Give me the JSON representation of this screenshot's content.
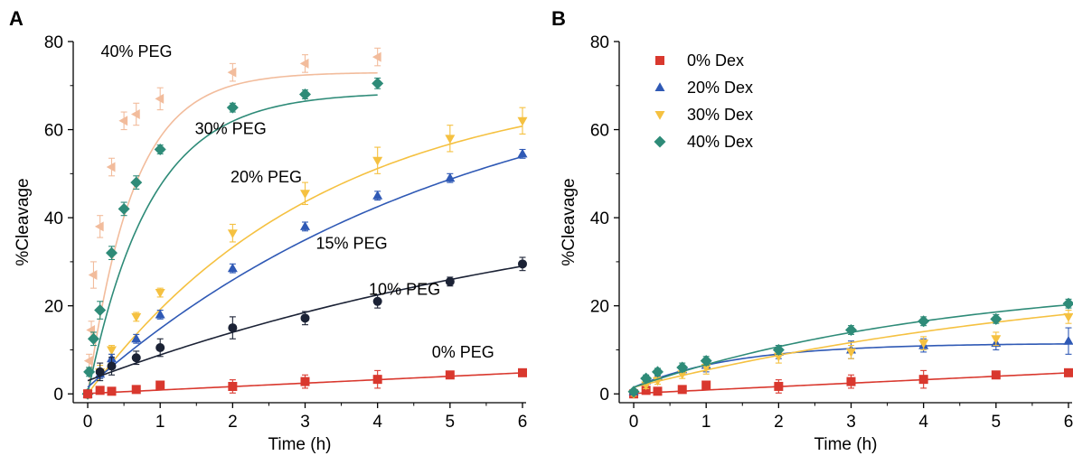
{
  "chart_data": [
    {
      "panel": "A",
      "type": "scatter",
      "xlabel": "Time (h)",
      "ylabel": "%Cleavage",
      "xlim": [
        -0.2,
        6.05
      ],
      "ylim": [
        -2,
        80
      ],
      "xticks": [
        0,
        1,
        2,
        3,
        4,
        5,
        6
      ],
      "yticks": [
        0,
        20,
        40,
        60,
        80
      ],
      "series": [
        {
          "name": "40% PEG",
          "color": "#f2bc9c",
          "marker": "triangle-left",
          "points": [
            {
              "x": 0.0,
              "y": 0,
              "err": 1
            },
            {
              "x": 0.02,
              "y": 7.5,
              "err": 1.5
            },
            {
              "x": 0.05,
              "y": 14.5,
              "err": 2
            },
            {
              "x": 0.08,
              "y": 27,
              "err": 3
            },
            {
              "x": 0.17,
              "y": 38,
              "err": 2.5
            },
            {
              "x": 0.33,
              "y": 51.5,
              "err": 2
            },
            {
              "x": 0.5,
              "y": 62,
              "err": 2
            },
            {
              "x": 0.67,
              "y": 63.5,
              "err": 2.5
            },
            {
              "x": 1,
              "y": 67,
              "err": 2.5
            },
            {
              "x": 2,
              "y": 73,
              "err": 2
            },
            {
              "x": 3,
              "y": 75,
              "err": 2
            },
            {
              "x": 4,
              "y": 76.5,
              "err": 2
            }
          ],
          "fit": {
            "form": "exp",
            "A": 73,
            "k": 1.6,
            "b": 0,
            "x_end": 4
          },
          "label": {
            "text": "40% PEG",
            "x": 0.18,
            "y": 76.5
          }
        },
        {
          "name": "30% PEG",
          "color": "#2e8b78",
          "marker": "diamond",
          "points": [
            {
              "x": 0.0,
              "y": 0,
              "err": 0.5
            },
            {
              "x": 0.02,
              "y": 5,
              "err": 1
            },
            {
              "x": 0.08,
              "y": 12.5,
              "err": 1.5
            },
            {
              "x": 0.17,
              "y": 19,
              "err": 2
            },
            {
              "x": 0.33,
              "y": 32,
              "err": 1.5
            },
            {
              "x": 0.5,
              "y": 42,
              "err": 1.5
            },
            {
              "x": 0.67,
              "y": 48,
              "err": 1.5
            },
            {
              "x": 1,
              "y": 55.5,
              "err": 1
            },
            {
              "x": 2,
              "y": 65,
              "err": 1
            },
            {
              "x": 3,
              "y": 68,
              "err": 1
            },
            {
              "x": 4,
              "y": 70.5,
              "err": 1.2
            }
          ],
          "fit": {
            "form": "exp",
            "A": 68.5,
            "k": 1.17,
            "b": 0,
            "x_end": 4
          },
          "label": {
            "text": "30% PEG",
            "x": 1.48,
            "y": 59
          }
        },
        {
          "name": "20% PEG",
          "color": "#f5c141",
          "marker": "triangle-down",
          "points": [
            {
              "x": 0.0,
              "y": 0,
              "err": 0.5
            },
            {
              "x": 0.17,
              "y": 5,
              "err": 1.5
            },
            {
              "x": 0.33,
              "y": 10,
              "err": 1
            },
            {
              "x": 0.67,
              "y": 17.5,
              "err": 1
            },
            {
              "x": 1,
              "y": 23,
              "err": 1
            },
            {
              "x": 2,
              "y": 36.5,
              "err": 2
            },
            {
              "x": 3,
              "y": 45.5,
              "err": 2.5
            },
            {
              "x": 4,
              "y": 53,
              "err": 3
            },
            {
              "x": 5,
              "y": 58,
              "err": 3
            },
            {
              "x": 6,
              "y": 62,
              "err": 3
            }
          ],
          "fit": {
            "form": "exp",
            "A": 72,
            "k": 0.31,
            "b": 0,
            "x_end": 6
          },
          "label": {
            "text": "20% PEG",
            "x": 1.97,
            "y": 48
          }
        },
        {
          "name": "15% PEG",
          "color": "#2f59b5",
          "marker": "triangle-up",
          "points": [
            {
              "x": 0.0,
              "y": 0,
              "err": 0.5
            },
            {
              "x": 0.17,
              "y": 4.5,
              "err": 1
            },
            {
              "x": 0.33,
              "y": 8,
              "err": 1
            },
            {
              "x": 0.67,
              "y": 12.5,
              "err": 1
            },
            {
              "x": 1,
              "y": 18,
              "err": 1
            },
            {
              "x": 2,
              "y": 28.5,
              "err": 1
            },
            {
              "x": 3,
              "y": 38,
              "err": 1
            },
            {
              "x": 4,
              "y": 45,
              "err": 1
            },
            {
              "x": 5,
              "y": 49,
              "err": 1
            },
            {
              "x": 6,
              "y": 54.5,
              "err": 1
            }
          ],
          "fit": {
            "form": "exp",
            "A": 77,
            "k": 0.19,
            "b": 1.5,
            "x_end": 6
          },
          "label": {
            "text": "15% PEG",
            "x": 3.15,
            "y": 33
          }
        },
        {
          "name": "10% PEG",
          "color": "#1b2235",
          "marker": "circle",
          "points": [
            {
              "x": 0.0,
              "y": 0,
              "err": 0.5
            },
            {
              "x": 0.17,
              "y": 5,
              "err": 2
            },
            {
              "x": 0.33,
              "y": 6.3,
              "err": 2
            },
            {
              "x": 0.67,
              "y": 8.2,
              "err": 1.5
            },
            {
              "x": 1,
              "y": 10.5,
              "err": 2
            },
            {
              "x": 2,
              "y": 15,
              "err": 2.5
            },
            {
              "x": 3,
              "y": 17.2,
              "err": 1.5
            },
            {
              "x": 4,
              "y": 21,
              "err": 1.5
            },
            {
              "x": 5,
              "y": 25.5,
              "err": 1
            },
            {
              "x": 6,
              "y": 29.5,
              "err": 1.5
            }
          ],
          "fit": {
            "form": "exp",
            "A": 48,
            "k": 0.13,
            "b": 3,
            "x_end": 6
          },
          "label": {
            "text": "10% PEG",
            "x": 3.88,
            "y": 22.5
          }
        },
        {
          "name": "0% PEG",
          "color": "#d9382e",
          "marker": "square",
          "points": [
            {
              "x": 0.0,
              "y": 0,
              "err": 0.5
            },
            {
              "x": 0.17,
              "y": 0.8,
              "err": 0.3
            },
            {
              "x": 0.33,
              "y": 0.6,
              "err": 0.3
            },
            {
              "x": 0.67,
              "y": 1,
              "err": 0.3
            },
            {
              "x": 1,
              "y": 2,
              "err": 0.5
            },
            {
              "x": 2,
              "y": 1.7,
              "err": 1.5
            },
            {
              "x": 3,
              "y": 2.8,
              "err": 1.5
            },
            {
              "x": 4,
              "y": 3.3,
              "err": 2
            },
            {
              "x": 5,
              "y": 4.3,
              "err": 0.5
            },
            {
              "x": 6,
              "y": 4.8,
              "err": 0.5
            }
          ],
          "fit": {
            "form": "linear",
            "m": 0.78,
            "b": 0.1,
            "x_end": 6
          },
          "label": {
            "text": "0% PEG",
            "x": 4.75,
            "y": 8.2
          }
        }
      ]
    },
    {
      "panel": "B",
      "type": "scatter",
      "xlabel": "Time (h)",
      "ylabel": "%Cleavage",
      "xlim": [
        -0.2,
        6.05
      ],
      "ylim": [
        -2,
        80
      ],
      "xticks": [
        0,
        1,
        2,
        3,
        4,
        5,
        6
      ],
      "yticks": [
        0,
        20,
        40,
        60,
        80
      ],
      "legend_position": "top-left",
      "series": [
        {
          "name": "0% Dex",
          "color": "#d9382e",
          "marker": "square",
          "points": [
            {
              "x": 0.0,
              "y": 0,
              "err": 0.5
            },
            {
              "x": 0.17,
              "y": 0.8,
              "err": 0.3
            },
            {
              "x": 0.33,
              "y": 0.6,
              "err": 0.3
            },
            {
              "x": 0.67,
              "y": 1,
              "err": 0.3
            },
            {
              "x": 1,
              "y": 2,
              "err": 0.5
            },
            {
              "x": 2,
              "y": 1.7,
              "err": 1.5
            },
            {
              "x": 3,
              "y": 2.8,
              "err": 1.5
            },
            {
              "x": 4,
              "y": 3.3,
              "err": 2
            },
            {
              "x": 5,
              "y": 4.3,
              "err": 0.5
            },
            {
              "x": 6,
              "y": 4.8,
              "err": 0.5
            }
          ],
          "fit": {
            "form": "linear",
            "m": 0.78,
            "b": 0.1,
            "x_end": 6
          }
        },
        {
          "name": "20% Dex",
          "color": "#2f59b5",
          "marker": "triangle-up",
          "points": [
            {
              "x": 0.0,
              "y": 0.5,
              "err": 0.5
            },
            {
              "x": 0.17,
              "y": 3,
              "err": 0.8
            },
            {
              "x": 0.33,
              "y": 4,
              "err": 1
            },
            {
              "x": 0.67,
              "y": 5.5,
              "err": 1
            },
            {
              "x": 1,
              "y": 6.5,
              "err": 1.5
            },
            {
              "x": 2,
              "y": 9.5,
              "err": 1.5
            },
            {
              "x": 3,
              "y": 10,
              "err": 2
            },
            {
              "x": 4,
              "y": 11,
              "err": 1.5
            },
            {
              "x": 5,
              "y": 11.5,
              "err": 1.5
            },
            {
              "x": 6,
              "y": 12,
              "err": 3
            }
          ],
          "fit": {
            "form": "exp",
            "A": 10,
            "k": 0.7,
            "b": 1.5,
            "x_end": 6
          }
        },
        {
          "name": "30% Dex",
          "color": "#f5c141",
          "marker": "triangle-down",
          "points": [
            {
              "x": 0.0,
              "y": 0,
              "err": 0.5
            },
            {
              "x": 0.17,
              "y": 2,
              "err": 0.8
            },
            {
              "x": 0.33,
              "y": 3,
              "err": 0.8
            },
            {
              "x": 0.67,
              "y": 4.5,
              "err": 1
            },
            {
              "x": 1,
              "y": 6,
              "err": 1.5
            },
            {
              "x": 2,
              "y": 8.5,
              "err": 1.5
            },
            {
              "x": 3,
              "y": 9.5,
              "err": 1.5
            },
            {
              "x": 4,
              "y": 11.5,
              "err": 1.5
            },
            {
              "x": 5,
              "y": 12.5,
              "err": 1.5
            },
            {
              "x": 6,
              "y": 17.5,
              "err": 1.5
            }
          ],
          "fit": {
            "form": "exp",
            "A": 28,
            "k": 0.15,
            "b": 1.5,
            "x_end": 6
          }
        },
        {
          "name": "40% Dex",
          "color": "#2e8b78",
          "marker": "diamond",
          "points": [
            {
              "x": 0.0,
              "y": 0.5,
              "err": 0.5
            },
            {
              "x": 0.17,
              "y": 3.5,
              "err": 0.8
            },
            {
              "x": 0.33,
              "y": 5,
              "err": 0.8
            },
            {
              "x": 0.67,
              "y": 6,
              "err": 1
            },
            {
              "x": 1,
              "y": 7.5,
              "err": 1
            },
            {
              "x": 2,
              "y": 10,
              "err": 1
            },
            {
              "x": 3,
              "y": 14.5,
              "err": 1
            },
            {
              "x": 4,
              "y": 16.5,
              "err": 1
            },
            {
              "x": 5,
              "y": 17,
              "err": 1
            },
            {
              "x": 6,
              "y": 20.5,
              "err": 1
            }
          ],
          "fit": {
            "form": "exp",
            "A": 25,
            "k": 0.23,
            "b": 1.5,
            "x_end": 6
          }
        }
      ]
    }
  ],
  "panel_letters": {
    "a": "A",
    "b": "B"
  }
}
